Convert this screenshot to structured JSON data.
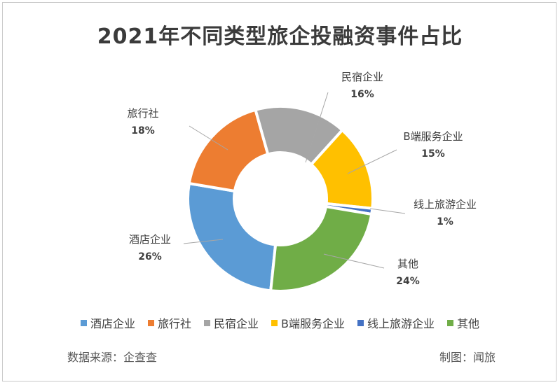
{
  "chart_data": {
    "type": "pie",
    "title": "2021年不同类型旅企投融资事件占比",
    "categories": [
      "酒店企业",
      "旅行社",
      "民宿企业",
      "B端服务企业",
      "线上旅游企业",
      "其他"
    ],
    "values": [
      26,
      18,
      16,
      15,
      1,
      24
    ],
    "value_labels": [
      "26%",
      "18%",
      "16%",
      "15%",
      "1%",
      "24%"
    ],
    "colors": [
      "#5b9bd5",
      "#ed7d31",
      "#a5a5a5",
      "#ffc000",
      "#4472c4",
      "#70ad47"
    ],
    "legend": "bottom",
    "donut": true
  },
  "footer": {
    "source": "数据来源：企查查",
    "credit": "制图：闻旅"
  }
}
